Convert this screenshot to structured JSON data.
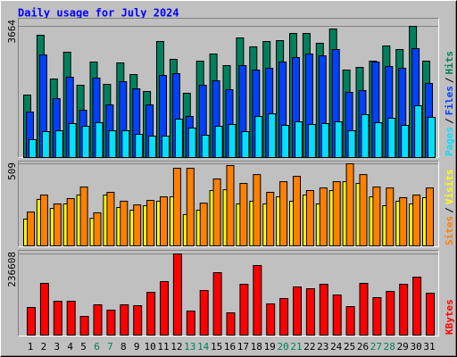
{
  "chart_data": [
    {
      "type": "bar",
      "title": "Daily usage for July 2024",
      "ylim": [
        0,
        3664
      ],
      "yticks": [
        3664
      ],
      "legend_separator": "/",
      "series": [
        {
          "name": "Hits",
          "color": "#00805c",
          "values": [
            1745,
            3415,
            2193,
            2941,
            2019,
            2667,
            2044,
            2642,
            2318,
            1844,
            3240,
            2742,
            1795,
            2692,
            2891,
            2567,
            3340,
            3091,
            3240,
            3265,
            3465,
            3465,
            3190,
            3589,
            2443,
            2517,
            2692,
            3116,
            3016,
            3664,
            2692
          ]
        },
        {
          "name": "Files",
          "color": "#0040ff",
          "values": [
            1271,
            2866,
            1645,
            2243,
            1321,
            2218,
            1471,
            2119,
            1919,
            1471,
            2293,
            2343,
            1147,
            2019,
            2144,
            1894,
            2567,
            2443,
            2493,
            2667,
            2792,
            2891,
            2841,
            3016,
            1820,
            1870,
            2667,
            2543,
            2493,
            3041,
            2069
          ]
        },
        {
          "name": "Pages",
          "color": "#00e0ff",
          "values": [
            499,
            723,
            748,
            947,
            872,
            972,
            748,
            748,
            648,
            598,
            598,
            1072,
            823,
            623,
            872,
            922,
            723,
            1147,
            1221,
            897,
            997,
            922,
            947,
            997,
            748,
            1196,
            972,
            1097,
            897,
            1446,
            1122
          ]
        }
      ]
    },
    {
      "type": "bar",
      "ylim": [
        0,
        509
      ],
      "yticks": [
        509
      ],
      "legend_separator": "/",
      "series": [
        {
          "name": "Visits",
          "color": "#ffff00",
          "values": [
            166,
            288,
            232,
            260,
            315,
            171,
            315,
            238,
            221,
            249,
            277,
            304,
            194,
            221,
            343,
            348,
            260,
            277,
            260,
            304,
            277,
            315,
            260,
            343,
            398,
            387,
            304,
            249,
            277,
            260,
            299
          ]
        },
        {
          "name": "Sites",
          "color": "#ff8000",
          "values": [
            210,
            315,
            260,
            293,
            365,
            205,
            332,
            277,
            254,
            282,
            304,
            481,
            481,
            265,
            415,
            498,
            387,
            442,
            332,
            398,
            431,
            343,
            359,
            398,
            509,
            442,
            365,
            359,
            299,
            315,
            359
          ]
        }
      ]
    },
    {
      "type": "bar",
      "ylim": [
        0,
        236608
      ],
      "yticks": [
        236608
      ],
      "categories": [
        "1",
        "2",
        "3",
        "4",
        "5",
        "6",
        "7",
        "8",
        "9",
        "10",
        "11",
        "12",
        "13",
        "14",
        "15",
        "16",
        "17",
        "18",
        "19",
        "20",
        "21",
        "22",
        "23",
        "24",
        "25",
        "26",
        "27",
        "28",
        "29",
        "30",
        "31"
      ],
      "category_colors": [
        "#000000",
        "#000000",
        "#000000",
        "#000000",
        "#000000",
        "#00805c",
        "#00805c",
        "#000000",
        "#000000",
        "#000000",
        "#000000",
        "#000000",
        "#00805c",
        "#00805c",
        "#000000",
        "#000000",
        "#000000",
        "#000000",
        "#000000",
        "#00805c",
        "#00805c",
        "#000000",
        "#000000",
        "#000000",
        "#000000",
        "#000000",
        "#00805c",
        "#00805c",
        "#000000",
        "#000000",
        "#000000"
      ],
      "series": [
        {
          "name": "KBytes",
          "color": "#ff0000",
          "values": [
            80600,
            150800,
            98800,
            98800,
            54600,
            88400,
            72800,
            88400,
            85800,
            124800,
            156000,
            236608,
            70200,
            130000,
            182000,
            65000,
            148200,
            202800,
            91000,
            106600,
            140400,
            135200,
            148200,
            117000,
            83200,
            150800,
            109200,
            127400,
            148200,
            169000,
            122200
          ]
        }
      ]
    }
  ]
}
